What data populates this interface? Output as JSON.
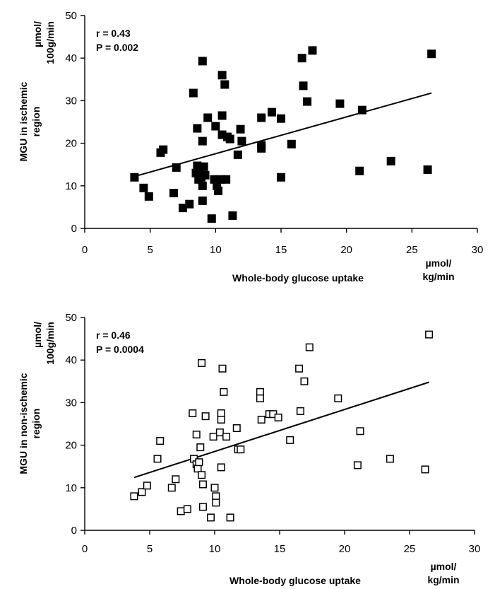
{
  "chart_data": [
    {
      "type": "scatter",
      "marker": "filled-square",
      "xlabel": "Whole-body glucose uptake",
      "xunit": [
        "µmol/",
        "kg/min"
      ],
      "ylabel": [
        "MGU in ischemic",
        "region"
      ],
      "yunit": [
        "µmol/",
        "100g/min"
      ],
      "annotation": [
        "r = 0.43",
        "P = 0.002"
      ],
      "xlim": [
        0,
        30
      ],
      "ylim": [
        0,
        50
      ],
      "xticks": [
        0,
        5,
        10,
        15,
        20,
        25,
        30
      ],
      "yticks": [
        0,
        10,
        20,
        30,
        40,
        50
      ],
      "trendline": {
        "x": [
          3.8,
          26.5
        ],
        "y": [
          12.2,
          31.8
        ]
      },
      "points": [
        [
          3.8,
          12.0
        ],
        [
          4.5,
          9.5
        ],
        [
          4.9,
          7.5
        ],
        [
          5.8,
          17.8
        ],
        [
          6.0,
          18.5
        ],
        [
          6.8,
          8.3
        ],
        [
          7.0,
          14.3
        ],
        [
          7.5,
          4.8
        ],
        [
          8.0,
          5.7
        ],
        [
          8.3,
          31.8
        ],
        [
          8.5,
          13.0
        ],
        [
          8.6,
          23.5
        ],
        [
          8.6,
          14.7
        ],
        [
          8.7,
          11.5
        ],
        [
          8.8,
          13.5
        ],
        [
          8.9,
          12.0
        ],
        [
          9.0,
          6.5
        ],
        [
          9.0,
          20.5
        ],
        [
          9.0,
          10.0
        ],
        [
          9.0,
          39.3
        ],
        [
          9.1,
          14.5
        ],
        [
          9.2,
          12.5
        ],
        [
          9.4,
          26.0
        ],
        [
          9.7,
          2.3
        ],
        [
          9.9,
          11.5
        ],
        [
          10.0,
          24.0
        ],
        [
          10.1,
          10.0
        ],
        [
          10.2,
          8.8
        ],
        [
          10.4,
          11.5
        ],
        [
          10.5,
          22.0
        ],
        [
          10.5,
          26.5
        ],
        [
          10.5,
          36.0
        ],
        [
          10.7,
          33.8
        ],
        [
          10.8,
          11.5
        ],
        [
          10.9,
          21.5
        ],
        [
          11.1,
          21.0
        ],
        [
          11.3,
          3.0
        ],
        [
          11.7,
          17.3
        ],
        [
          11.9,
          23.3
        ],
        [
          12.0,
          20.5
        ],
        [
          13.5,
          19.5
        ],
        [
          13.5,
          26.0
        ],
        [
          13.5,
          18.8
        ],
        [
          14.3,
          27.3
        ],
        [
          15.0,
          25.8
        ],
        [
          15.0,
          12.0
        ],
        [
          15.8,
          19.8
        ],
        [
          16.6,
          40.0
        ],
        [
          16.7,
          33.5
        ],
        [
          17.0,
          29.8
        ],
        [
          17.4,
          41.8
        ],
        [
          19.5,
          29.3
        ],
        [
          21.0,
          13.5
        ],
        [
          21.2,
          27.8
        ],
        [
          23.4,
          15.8
        ],
        [
          26.2,
          13.8
        ],
        [
          26.5,
          41.0
        ]
      ]
    },
    {
      "type": "scatter",
      "marker": "open-square",
      "xlabel": "Whole-body glucose uptake",
      "xunit": [
        "µmol/",
        "kg/min"
      ],
      "ylabel": [
        "MGU in non-ischemic",
        "region"
      ],
      "yunit": [
        "µmol/",
        "100g/min"
      ],
      "annotation": [
        "r = 0.46",
        "P = 0.0004"
      ],
      "xlim": [
        0,
        30
      ],
      "ylim": [
        0,
        50
      ],
      "xticks": [
        0,
        5,
        10,
        15,
        20,
        25,
        30
      ],
      "yticks": [
        0,
        10,
        20,
        30,
        40,
        50
      ],
      "trendline": {
        "x": [
          3.8,
          26.5
        ],
        "y": [
          12.4,
          34.8
        ]
      },
      "points": [
        [
          3.8,
          8.0
        ],
        [
          4.4,
          9.0
        ],
        [
          4.8,
          10.5
        ],
        [
          5.6,
          16.8
        ],
        [
          5.8,
          21.0
        ],
        [
          6.7,
          10.0
        ],
        [
          7.0,
          12.0
        ],
        [
          7.4,
          4.5
        ],
        [
          7.9,
          5.0
        ],
        [
          8.3,
          27.5
        ],
        [
          8.4,
          16.8
        ],
        [
          8.6,
          22.5
        ],
        [
          8.6,
          15.5
        ],
        [
          8.7,
          14.5
        ],
        [
          8.8,
          16.0
        ],
        [
          8.9,
          19.5
        ],
        [
          9.0,
          39.3
        ],
        [
          9.0,
          13.0
        ],
        [
          9.1,
          10.8
        ],
        [
          9.1,
          5.5
        ],
        [
          9.3,
          26.8
        ],
        [
          9.7,
          3.0
        ],
        [
          9.9,
          22.0
        ],
        [
          10.0,
          10.0
        ],
        [
          10.1,
          8.0
        ],
        [
          10.1,
          6.5
        ],
        [
          10.4,
          23.0
        ],
        [
          10.5,
          27.5
        ],
        [
          10.5,
          26.0
        ],
        [
          10.5,
          14.8
        ],
        [
          10.6,
          38.0
        ],
        [
          10.7,
          32.5
        ],
        [
          10.9,
          22.0
        ],
        [
          11.2,
          3.0
        ],
        [
          11.7,
          24.0
        ],
        [
          11.8,
          19.0
        ],
        [
          12.0,
          19.0
        ],
        [
          13.5,
          32.5
        ],
        [
          13.5,
          31.0
        ],
        [
          13.6,
          26.0
        ],
        [
          14.2,
          27.3
        ],
        [
          14.5,
          27.3
        ],
        [
          14.9,
          26.5
        ],
        [
          15.8,
          21.2
        ],
        [
          16.5,
          38.0
        ],
        [
          16.6,
          28.0
        ],
        [
          16.9,
          35.0
        ],
        [
          17.3,
          43.0
        ],
        [
          19.5,
          31.0
        ],
        [
          21.0,
          15.3
        ],
        [
          21.2,
          23.3
        ],
        [
          23.5,
          16.8
        ],
        [
          26.2,
          14.3
        ],
        [
          26.5,
          46.0
        ]
      ]
    }
  ]
}
